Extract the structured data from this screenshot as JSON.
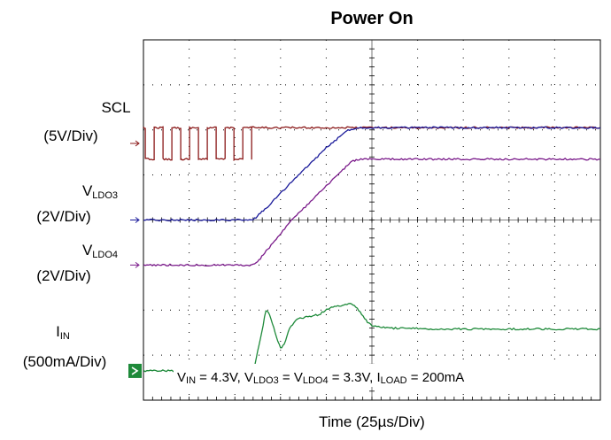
{
  "chart_data": {
    "type": "line",
    "title": "Power On",
    "xlabel": "Time (25µs/Div)",
    "x_div": 25,
    "x_unit": "µs",
    "xlim": [
      0,
      250
    ],
    "divisions": {
      "x": 10,
      "y": 8
    },
    "grid": true,
    "conditions": {
      "vin_main": "V",
      "vin_sub": "IN",
      "vin_val": " = 4.3V, ",
      "vldo3_main": "V",
      "vldo3_sub": "LDO3",
      "eq": " = ",
      "vldo4_main": "V",
      "vldo4_sub": "LDO4",
      "vldo4_val": " = 3.3V, ",
      "iload_main": "I",
      "iload_sub": "LOAD",
      "iload_val": " = 200mA"
    },
    "channels": [
      {
        "id": "scl",
        "name_main": "SCL",
        "name_sub": "",
        "scale": "(5V/Div)",
        "color": "#8b1a1a",
        "ref_div": 5.7
      },
      {
        "id": "vldo3",
        "name_main": "V",
        "name_sub": "LDO3",
        "scale": "(2V/Div)",
        "color": "#1a1a9a",
        "ref_div": 4.0
      },
      {
        "id": "vldo4",
        "name_main": "V",
        "name_sub": "LDO4",
        "scale": "(2V/Div)",
        "color": "#7a1a8a",
        "ref_div": 3.0
      },
      {
        "id": "iin",
        "name_main": "I",
        "name_sub": "IN",
        "scale": "(500mA/Div)",
        "color": "#1e8a3a",
        "ref_div": 0.65
      }
    ],
    "series": [
      {
        "id": "scl",
        "shape": "clock",
        "low": 5.35,
        "high": 6.05,
        "period_us": 9.7,
        "start_us": 1.0,
        "end_us": 62,
        "final": 6.05
      },
      {
        "id": "vldo3",
        "x": [
          0,
          60,
          64,
          68,
          80,
          100,
          112,
          118,
          250
        ],
        "y": [
          4.0,
          4.0,
          4.15,
          4.3,
          4.8,
          5.6,
          6.0,
          6.05,
          6.05
        ]
      },
      {
        "id": "vldo4",
        "x": [
          0,
          60,
          64,
          68,
          80,
          100,
          110,
          114,
          118,
          250
        ],
        "y": [
          3.0,
          3.0,
          3.15,
          3.35,
          3.95,
          4.75,
          5.15,
          5.3,
          5.35,
          5.35
        ]
      },
      {
        "id": "iin",
        "x": [
          0,
          55,
          61,
          64,
          67,
          69,
          72,
          75,
          77,
          80,
          84,
          90,
          96,
          102,
          108,
          113,
          117,
          121,
          125,
          135,
          160,
          250
        ],
        "y": [
          0.65,
          0.65,
          0.8,
          1.35,
          2.0,
          1.9,
          1.5,
          1.15,
          1.25,
          1.6,
          1.8,
          1.85,
          1.9,
          2.05,
          2.1,
          2.15,
          2.05,
          1.8,
          1.65,
          1.6,
          1.58,
          1.58
        ]
      }
    ]
  }
}
